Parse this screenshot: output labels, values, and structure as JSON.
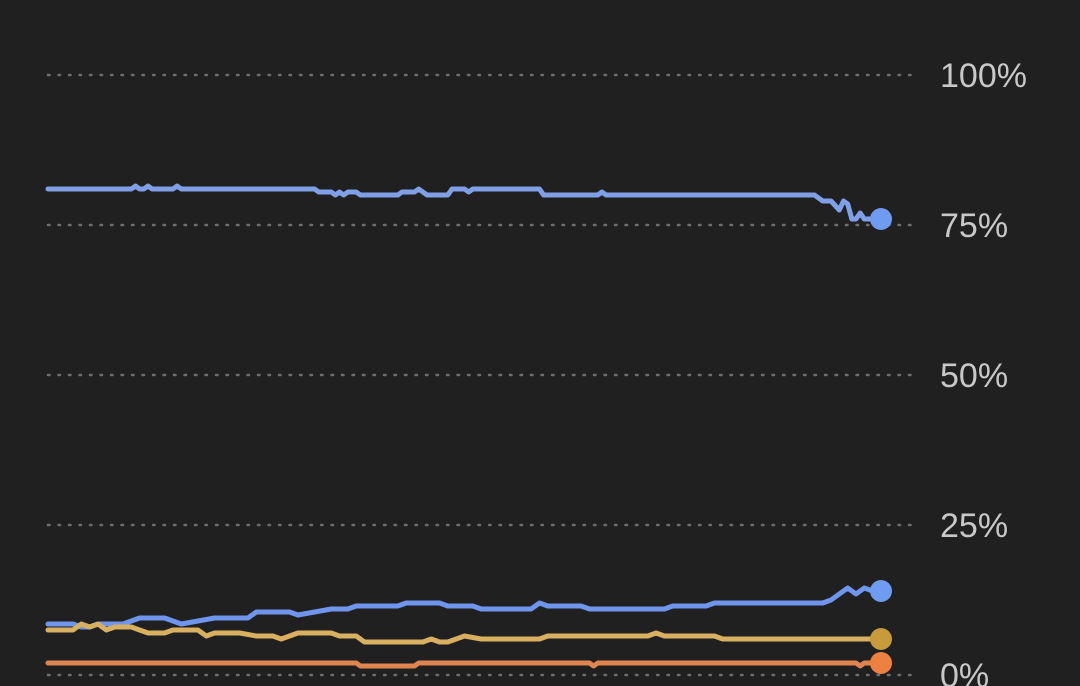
{
  "chart_data": {
    "type": "line",
    "ylim": [
      0,
      100
    ],
    "xlim": [
      0,
      100
    ],
    "y_ticks": [
      {
        "value": 0,
        "label": "0%"
      },
      {
        "value": 25,
        "label": "25%"
      },
      {
        "value": 50,
        "label": "50%"
      },
      {
        "value": 75,
        "label": "75%"
      },
      {
        "value": 100,
        "label": "100%"
      }
    ],
    "grid": true,
    "legend": "none",
    "series": [
      {
        "color": "#7fa0e6",
        "end_marker_color": "#6f9cf0",
        "points": [
          [
            0,
            81
          ],
          [
            10,
            81
          ],
          [
            10.5,
            81.5
          ],
          [
            11,
            81
          ],
          [
            11.5,
            81
          ],
          [
            12,
            81.5
          ],
          [
            12.5,
            81
          ],
          [
            15,
            81
          ],
          [
            15.5,
            81.5
          ],
          [
            16,
            81
          ],
          [
            32,
            81
          ],
          [
            32.5,
            80.5
          ],
          [
            34,
            80.5
          ],
          [
            34.5,
            80
          ],
          [
            35,
            80.5
          ],
          [
            35.5,
            80
          ],
          [
            36,
            80.5
          ],
          [
            37,
            80.5
          ],
          [
            37.5,
            80
          ],
          [
            42,
            80
          ],
          [
            42.5,
            80.5
          ],
          [
            44,
            80.5
          ],
          [
            44.5,
            81
          ],
          [
            45,
            80.5
          ],
          [
            45.5,
            80
          ],
          [
            48,
            80
          ],
          [
            48.5,
            81
          ],
          [
            50,
            81
          ],
          [
            50.5,
            80.5
          ],
          [
            51,
            81
          ],
          [
            59,
            81
          ],
          [
            59.5,
            80
          ],
          [
            66,
            80
          ],
          [
            66.5,
            80.5
          ],
          [
            67,
            80
          ],
          [
            92,
            80
          ],
          [
            93,
            79
          ],
          [
            94,
            79
          ],
          [
            95,
            77.5
          ],
          [
            95.5,
            79
          ],
          [
            96,
            78.5
          ],
          [
            96.5,
            76
          ],
          [
            97,
            76
          ],
          [
            97.5,
            77
          ],
          [
            98,
            76
          ],
          [
            100,
            76
          ]
        ]
      },
      {
        "color": "#6f96ec",
        "end_marker_color": "#6f9cf0",
        "points": [
          [
            0,
            8.5
          ],
          [
            1,
            8.5
          ],
          [
            3,
            8.5
          ],
          [
            4,
            8
          ],
          [
            5,
            8
          ],
          [
            6,
            8.5
          ],
          [
            9,
            8.5
          ],
          [
            10,
            9
          ],
          [
            11,
            9.5
          ],
          [
            14,
            9.5
          ],
          [
            15,
            9
          ],
          [
            16,
            8.5
          ],
          [
            18,
            9
          ],
          [
            20,
            9.5
          ],
          [
            24,
            9.5
          ],
          [
            25,
            10.5
          ],
          [
            29,
            10.5
          ],
          [
            30,
            10
          ],
          [
            32,
            10.5
          ],
          [
            34,
            11
          ],
          [
            36,
            11
          ],
          [
            37,
            11.5
          ],
          [
            42,
            11.5
          ],
          [
            43,
            12
          ],
          [
            47,
            12
          ],
          [
            48,
            11.5
          ],
          [
            51,
            11.5
          ],
          [
            52,
            11
          ],
          [
            58,
            11
          ],
          [
            59,
            12
          ],
          [
            60,
            11.5
          ],
          [
            64,
            11.5
          ],
          [
            65,
            11
          ],
          [
            74,
            11
          ],
          [
            75,
            11.5
          ],
          [
            79,
            11.5
          ],
          [
            80,
            12
          ],
          [
            93,
            12
          ],
          [
            94,
            12.5
          ],
          [
            95,
            13.5
          ],
          [
            96,
            14.5
          ],
          [
            97,
            13.5
          ],
          [
            98,
            14.5
          ],
          [
            99,
            14
          ],
          [
            100,
            14
          ]
        ]
      },
      {
        "color": "#d8b060",
        "end_marker_color": "#c79a3a",
        "points": [
          [
            0,
            7.5
          ],
          [
            3,
            7.5
          ],
          [
            4,
            8.5
          ],
          [
            5,
            8
          ],
          [
            6,
            8.5
          ],
          [
            7,
            7.5
          ],
          [
            8,
            8
          ],
          [
            10,
            8
          ],
          [
            11,
            7.5
          ],
          [
            12,
            7
          ],
          [
            14,
            7
          ],
          [
            15,
            7.5
          ],
          [
            18,
            7.5
          ],
          [
            19,
            6.5
          ],
          [
            20,
            7
          ],
          [
            23,
            7
          ],
          [
            25,
            6.5
          ],
          [
            27,
            6.5
          ],
          [
            28,
            6
          ],
          [
            29,
            6.5
          ],
          [
            30,
            7
          ],
          [
            34,
            7
          ],
          [
            35,
            6.5
          ],
          [
            37,
            6.5
          ],
          [
            38,
            5.5
          ],
          [
            45,
            5.5
          ],
          [
            46,
            6
          ],
          [
            47,
            5.5
          ],
          [
            48,
            5.5
          ],
          [
            49,
            6
          ],
          [
            50,
            6.5
          ],
          [
            52,
            6
          ],
          [
            59,
            6
          ],
          [
            60,
            6.5
          ],
          [
            72,
            6.5
          ],
          [
            73,
            7
          ],
          [
            74,
            6.5
          ],
          [
            80,
            6.5
          ],
          [
            81,
            6
          ],
          [
            98,
            6
          ],
          [
            100,
            6
          ]
        ]
      },
      {
        "color": "#e08550",
        "end_marker_color": "#ee8040",
        "points": [
          [
            0,
            2
          ],
          [
            37,
            2
          ],
          [
            37.5,
            1.5
          ],
          [
            44,
            1.5
          ],
          [
            44.5,
            2
          ],
          [
            65,
            2
          ],
          [
            65.5,
            1.5
          ],
          [
            66,
            2
          ],
          [
            97,
            2
          ],
          [
            97.5,
            1.5
          ],
          [
            98,
            2
          ],
          [
            100,
            2
          ]
        ]
      }
    ]
  }
}
